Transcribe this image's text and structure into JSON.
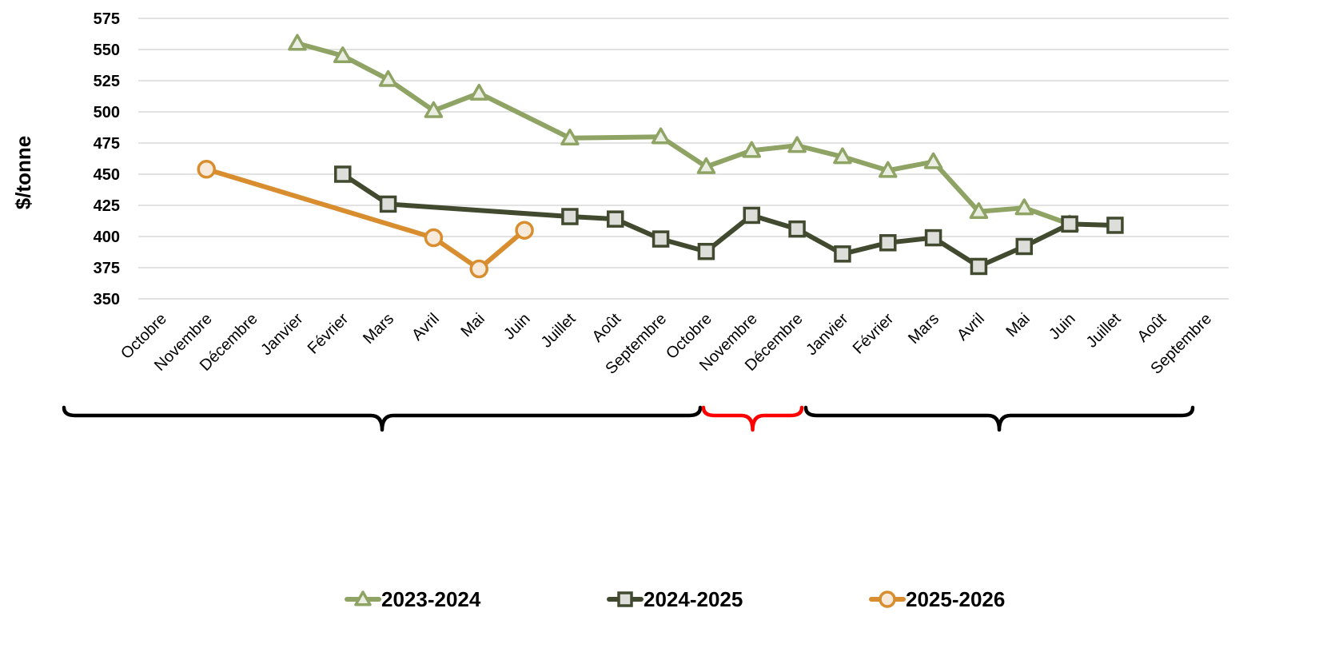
{
  "chart_data": {
    "type": "line",
    "ylabel": "$/tonne",
    "xlabel": "",
    "ylim": [
      350,
      575
    ],
    "yticks": [
      350,
      375,
      400,
      425,
      450,
      475,
      500,
      525,
      550,
      575
    ],
    "grid": true,
    "legend_position": "bottom",
    "categories": [
      "Octobre",
      "Novembre",
      "Décembre",
      "Janvier",
      "Février",
      "Mars",
      "Avril",
      "Mai",
      "Juin",
      "Juillet",
      "Août",
      "Septembre",
      "Octobre",
      "Novembre",
      "Décembre",
      "Janvier",
      "Février",
      "Mars",
      "Avril",
      "Mai",
      "Juin",
      "Juillet",
      "Août",
      "Septembre"
    ],
    "series": [
      {
        "name": "2023-2024",
        "color": "#8fa464",
        "marker": "triangle",
        "values": [
          null,
          null,
          null,
          555,
          545,
          526,
          501,
          515,
          null,
          479,
          null,
          480,
          456,
          469,
          473,
          464,
          453,
          460,
          420,
          423,
          410,
          null,
          null,
          null
        ]
      },
      {
        "name": "2024-2025",
        "color": "#414a2f",
        "marker": "square",
        "values": [
          null,
          null,
          null,
          null,
          450,
          426,
          null,
          null,
          null,
          416,
          414,
          398,
          388,
          417,
          406,
          386,
          395,
          399,
          376,
          392,
          410,
          409,
          null,
          null
        ]
      },
      {
        "name": "2025-2026",
        "color": "#d88d2f",
        "marker": "circle",
        "values": [
          null,
          454,
          null,
          null,
          null,
          null,
          399,
          374,
          405,
          null,
          null,
          null,
          null,
          null,
          null,
          null,
          null,
          null,
          null,
          null,
          null,
          null,
          null,
          null
        ]
      }
    ],
    "annotations": [
      {
        "type": "brace",
        "color": "#000000",
        "from": "Octobre",
        "to": "Octobre"
      },
      {
        "type": "brace",
        "color": "#ff0000",
        "from": "Octobre",
        "to": "Décembre"
      },
      {
        "type": "brace",
        "color": "#000000",
        "from": "Décembre",
        "to": "Août"
      }
    ]
  }
}
